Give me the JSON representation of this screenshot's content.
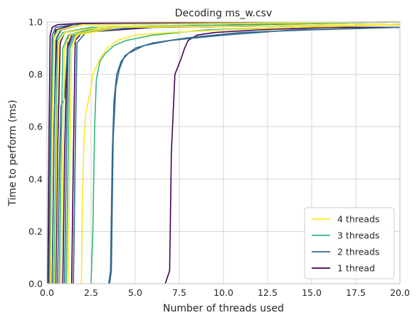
{
  "chart_data": {
    "type": "line",
    "title": "Decoding ms_w.csv",
    "xlabel": "Number of threads used",
    "ylabel": "Time to perform (ms)",
    "xlim": [
      0,
      20
    ],
    "ylim": [
      0,
      1
    ],
    "xticks": [
      0,
      2.5,
      5,
      7.5,
      10,
      12.5,
      15,
      17.5,
      20
    ],
    "xtick_labels": [
      "0.0",
      "2.5",
      "5.0",
      "7.5",
      "10.0",
      "12.5",
      "15.0",
      "17.5",
      "20.0"
    ],
    "yticks": [
      0,
      0.2,
      0.4,
      0.6,
      0.8,
      1.0
    ],
    "ytick_labels": [
      "0.0",
      "0.2",
      "0.4",
      "0.6",
      "0.8",
      "1.0"
    ],
    "grid": true,
    "legend_position": "lower-right",
    "legend": [
      {
        "name": "4 threads",
        "color": "#fde725"
      },
      {
        "name": "3 threads",
        "color": "#35b779"
      },
      {
        "name": "2 threads",
        "color": "#31688e"
      },
      {
        "name": "1 thread",
        "color": "#440154"
      }
    ],
    "series": [
      {
        "group": "1 thread",
        "color": "#440154",
        "x": [
          0.05,
          0.12,
          0.18,
          0.3,
          0.6,
          2,
          20
        ],
        "y": [
          0,
          0.6,
          0.95,
          0.98,
          0.99,
          0.995,
          1.0
        ]
      },
      {
        "group": "1 thread",
        "color": "#440154",
        "x": [
          0.15,
          0.25,
          0.35,
          0.5,
          1.5,
          20
        ],
        "y": [
          0,
          0.5,
          0.93,
          0.97,
          0.99,
          1.0
        ]
      },
      {
        "group": "1 thread",
        "color": "#440154",
        "x": [
          0.3,
          0.4,
          0.55,
          0.8,
          2,
          20
        ],
        "y": [
          0,
          0.6,
          0.94,
          0.97,
          0.99,
          1.0
        ]
      },
      {
        "group": "1 thread",
        "color": "#440154",
        "x": [
          0.5,
          0.6,
          0.75,
          1.0,
          3,
          20
        ],
        "y": [
          0,
          0.5,
          0.92,
          0.96,
          0.98,
          1.0
        ]
      },
      {
        "group": "1 thread",
        "color": "#440154",
        "x": [
          0.9,
          1.0,
          1.15,
          1.4,
          4,
          20
        ],
        "y": [
          0,
          0.5,
          0.9,
          0.95,
          0.98,
          0.99
        ]
      },
      {
        "group": "1 thread",
        "color": "#440154",
        "x": [
          1.4,
          1.5,
          1.6,
          2.0,
          6,
          20
        ],
        "y": [
          0,
          0.5,
          0.93,
          0.96,
          0.98,
          0.99
        ]
      },
      {
        "group": "1 thread",
        "color": "#440154",
        "x": [
          6.7,
          6.95,
          7.05,
          7.25,
          7.6,
          7.8,
          8.0,
          8.5,
          9.5,
          12,
          16,
          20
        ],
        "y": [
          0,
          0.05,
          0.5,
          0.8,
          0.86,
          0.9,
          0.93,
          0.95,
          0.96,
          0.97,
          0.98,
          0.98
        ]
      },
      {
        "group": "2 threads",
        "color": "#31688e",
        "x": [
          0.1,
          0.2,
          0.3,
          0.5,
          1.5,
          20
        ],
        "y": [
          0,
          0.6,
          0.95,
          0.98,
          0.99,
          1.0
        ]
      },
      {
        "group": "2 threads",
        "color": "#31688e",
        "x": [
          0.3,
          0.4,
          0.5,
          0.8,
          2,
          20
        ],
        "y": [
          0,
          0.55,
          0.93,
          0.97,
          0.99,
          1.0
        ]
      },
      {
        "group": "2 threads",
        "color": "#31688e",
        "x": [
          0.6,
          0.7,
          0.8,
          1.0,
          1.2,
          3,
          20
        ],
        "y": [
          0,
          0.45,
          0.68,
          0.71,
          0.95,
          0.98,
          0.99
        ]
      },
      {
        "group": "2 threads",
        "color": "#31688e",
        "x": [
          1.0,
          1.1,
          1.2,
          1.5,
          4,
          20
        ],
        "y": [
          0,
          0.5,
          0.9,
          0.95,
          0.98,
          0.99
        ]
      },
      {
        "group": "2 threads",
        "color": "#31688e",
        "x": [
          1.5,
          1.6,
          1.7,
          2.2,
          5,
          20
        ],
        "y": [
          0,
          0.5,
          0.92,
          0.96,
          0.98,
          0.99
        ]
      },
      {
        "group": "2 threads",
        "color": "#31688e",
        "x": [
          3.5,
          3.6,
          3.7,
          3.8,
          3.95,
          4.2,
          4.6,
          5.5,
          7,
          10,
          14,
          20
        ],
        "y": [
          0,
          0.05,
          0.5,
          0.7,
          0.8,
          0.85,
          0.88,
          0.91,
          0.93,
          0.95,
          0.97,
          0.98
        ]
      },
      {
        "group": "2 threads",
        "color": "#31688e",
        "x": [
          3.55,
          3.65,
          3.75,
          3.9,
          4.1,
          4.4,
          5.0,
          6,
          8,
          11,
          15,
          20
        ],
        "y": [
          0,
          0.05,
          0.55,
          0.75,
          0.82,
          0.87,
          0.9,
          0.92,
          0.94,
          0.96,
          0.97,
          0.98
        ]
      },
      {
        "group": "3 threads",
        "color": "#35b779",
        "x": [
          0.15,
          0.25,
          0.35,
          0.6,
          2,
          20
        ],
        "y": [
          0,
          0.6,
          0.94,
          0.97,
          0.99,
          1.0
        ]
      },
      {
        "group": "3 threads",
        "color": "#35b779",
        "x": [
          0.4,
          0.5,
          0.6,
          0.9,
          2.5,
          20
        ],
        "y": [
          0,
          0.5,
          0.93,
          0.96,
          0.98,
          1.0
        ]
      },
      {
        "group": "3 threads",
        "color": "#35b779",
        "x": [
          0.7,
          0.8,
          0.9,
          1.2,
          3,
          20
        ],
        "y": [
          0,
          0.5,
          0.9,
          0.95,
          0.98,
          0.99
        ]
      },
      {
        "group": "3 threads",
        "color": "#35b779",
        "x": [
          1.1,
          1.2,
          1.3,
          1.6,
          4,
          20
        ],
        "y": [
          0,
          0.5,
          0.9,
          0.95,
          0.98,
          0.99
        ]
      },
      {
        "group": "3 threads",
        "color": "#35b779",
        "x": [
          2.5,
          2.6,
          2.7,
          2.8,
          3.0,
          3.3,
          3.8,
          4.5,
          6,
          9,
          14,
          20
        ],
        "y": [
          0,
          0.2,
          0.6,
          0.78,
          0.85,
          0.88,
          0.91,
          0.93,
          0.95,
          0.97,
          0.98,
          0.99
        ]
      },
      {
        "group": "4 threads",
        "color": "#fde725",
        "x": [
          0.2,
          0.3,
          0.4,
          0.7,
          2,
          20
        ],
        "y": [
          0,
          0.6,
          0.94,
          0.97,
          0.99,
          1.0
        ]
      },
      {
        "group": "4 threads",
        "color": "#fde725",
        "x": [
          0.45,
          0.55,
          0.65,
          1.0,
          3,
          20
        ],
        "y": [
          0,
          0.5,
          0.92,
          0.96,
          0.98,
          0.99
        ]
      },
      {
        "group": "4 threads",
        "color": "#fde725",
        "x": [
          0.8,
          0.9,
          1.0,
          1.3,
          3.5,
          20
        ],
        "y": [
          0,
          0.5,
          0.9,
          0.95,
          0.98,
          0.99
        ]
      },
      {
        "group": "4 threads",
        "color": "#fde725",
        "x": [
          1.2,
          1.3,
          1.4,
          1.7,
          4,
          20
        ],
        "y": [
          0,
          0.5,
          0.9,
          0.95,
          0.98,
          0.99
        ]
      },
      {
        "group": "4 threads",
        "color": "#fde725",
        "x": [
          1.95,
          2.0,
          2.1,
          2.2,
          2.35,
          2.5,
          2.6,
          2.8,
          3.0,
          3.4,
          4.0,
          5,
          7,
          10,
          14,
          20
        ],
        "y": [
          0,
          0.3,
          0.55,
          0.65,
          0.7,
          0.75,
          0.8,
          0.83,
          0.86,
          0.9,
          0.93,
          0.95,
          0.96,
          0.97,
          0.98,
          0.99
        ]
      }
    ]
  }
}
